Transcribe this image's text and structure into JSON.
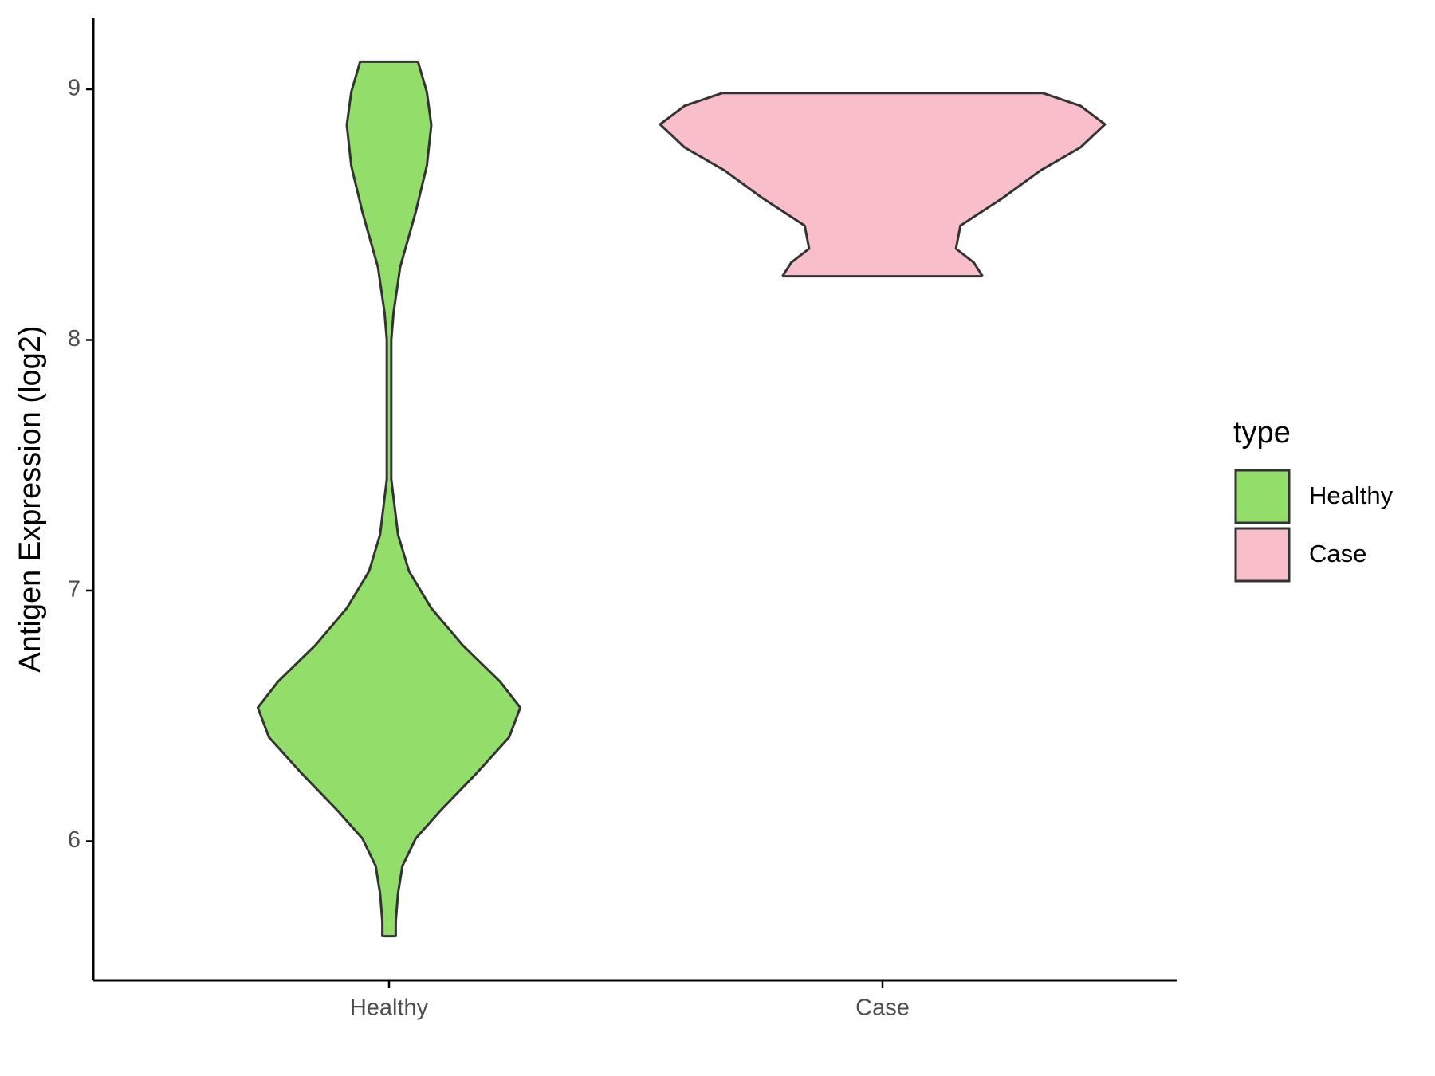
{
  "chart_data": {
    "type": "violin",
    "ylabel": "Antigen Expression (log2)",
    "categories": [
      "Healthy",
      "Case"
    ],
    "legend_title": "type",
    "legend_position": "right",
    "series": [
      {
        "name": "Healthy",
        "color": "#93dd6a",
        "y": [
          5.621,
          5.68,
          5.79,
          5.901,
          6.011,
          6.121,
          6.268,
          6.415,
          6.533,
          6.636,
          6.783,
          6.93,
          7.077,
          7.224,
          7.445,
          7.702,
          8.0,
          8.107,
          8.29,
          8.511,
          8.695,
          8.857,
          8.989,
          9.11
        ],
        "width": [
          0.03,
          0.03,
          0.04,
          0.06,
          0.12,
          0.23,
          0.39,
          0.54,
          0.59,
          0.5,
          0.33,
          0.19,
          0.09,
          0.04,
          0.01,
          0.01,
          0.01,
          0.02,
          0.05,
          0.12,
          0.17,
          0.19,
          0.17,
          0.13
        ]
      },
      {
        "name": "Case",
        "color": "#f8bfcb",
        "y": [
          8.254,
          8.309,
          8.364,
          8.456,
          8.566,
          8.676,
          8.768,
          8.86,
          8.934,
          8.985
        ],
        "width": [
          0.45,
          0.41,
          0.33,
          0.35,
          0.54,
          0.71,
          0.89,
          1.0,
          0.89,
          0.72
        ]
      }
    ],
    "ylim": [
      5.445,
      9.283
    ],
    "yticks": [
      6,
      7,
      8,
      9
    ]
  }
}
